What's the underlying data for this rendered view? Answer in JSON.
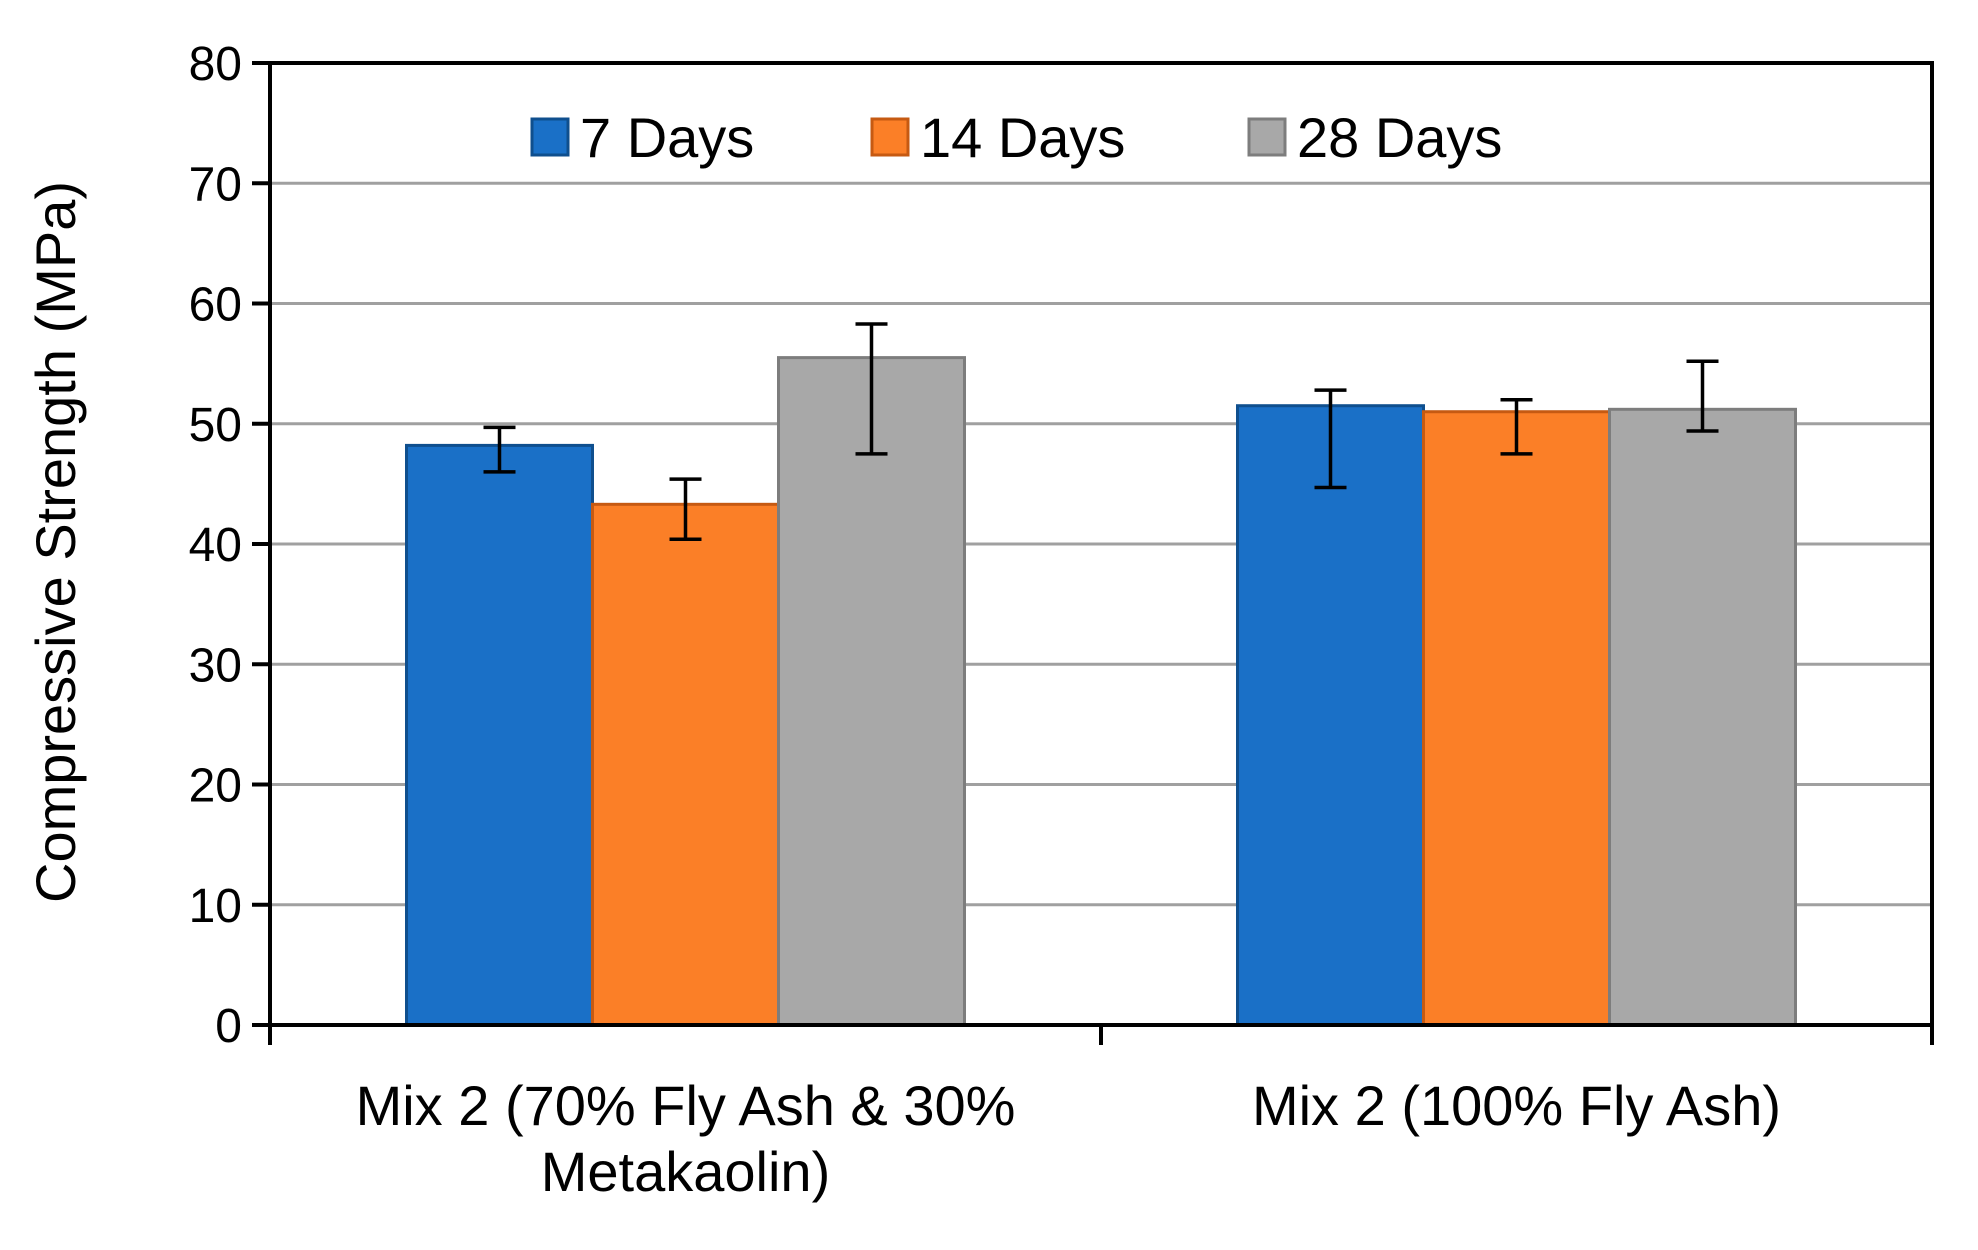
{
  "chart_data": {
    "type": "bar",
    "title": "",
    "xlabel": "",
    "ylabel": "Compressive Strength (MPa)",
    "ylim": [
      0,
      80
    ],
    "yticks": [
      0,
      10,
      20,
      30,
      40,
      50,
      60,
      70,
      80
    ],
    "grid": true,
    "legend_position": "top",
    "categories": [
      [
        "Mix 2 (70% Fly Ash & 30%",
        "Metakaolin)"
      ],
      [
        "Mix 2 (100% Fly Ash)"
      ]
    ],
    "series": [
      {
        "name": "7 Days",
        "color": "#1a70c7",
        "edge": "#0f4f8e",
        "values": [
          48.2,
          51.5
        ],
        "error_low": [
          2.2,
          6.8
        ],
        "error_high": [
          1.5,
          1.3
        ]
      },
      {
        "name": "14 Days",
        "color": "#fb7f27",
        "edge": "#c65a12",
        "values": [
          43.3,
          51.0
        ],
        "error_low": [
          2.9,
          3.5
        ],
        "error_high": [
          2.1,
          1.0
        ]
      },
      {
        "name": "28 Days",
        "color": "#a8a8a8",
        "edge": "#7d7d7d",
        "values": [
          55.5,
          51.2
        ],
        "error_low": [
          8.0,
          1.8
        ],
        "error_high": [
          2.8,
          4.0
        ]
      }
    ]
  }
}
